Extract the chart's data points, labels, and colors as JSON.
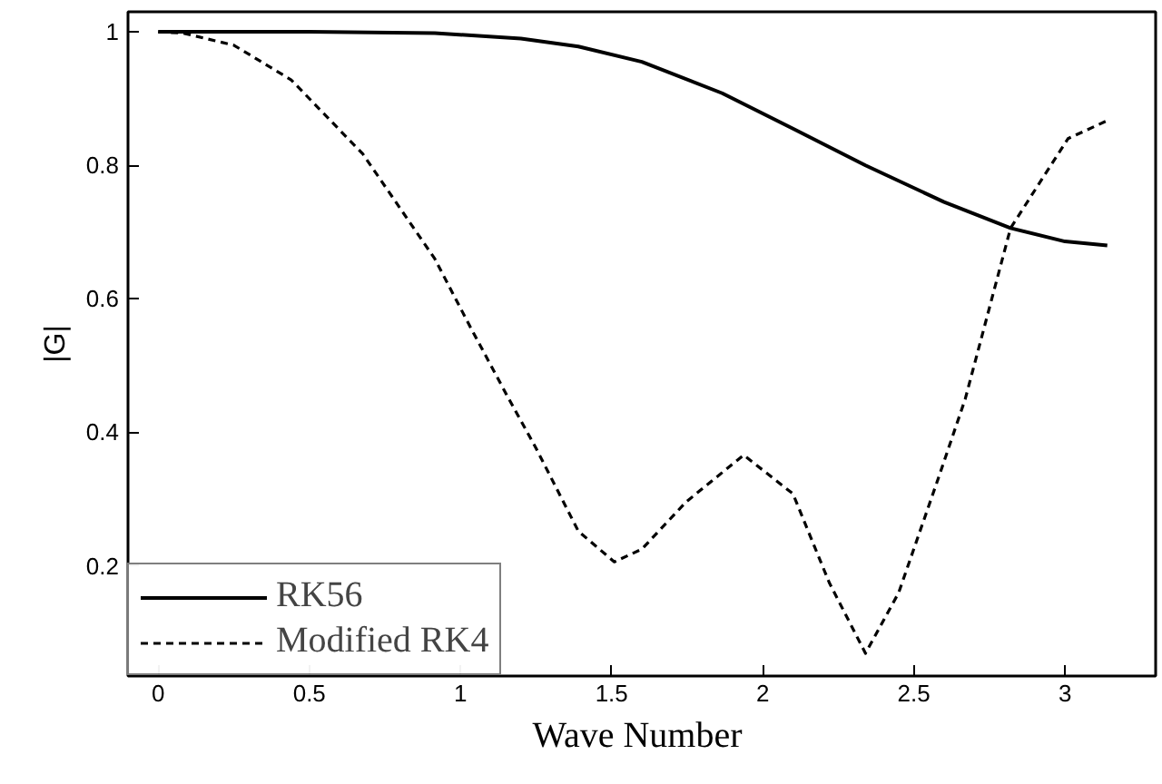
{
  "chart_data": {
    "type": "line",
    "xlabel": "Wave  Number",
    "ylabel": "|G|",
    "xlim": [
      -0.1,
      3.3
    ],
    "ylim": [
      0.035,
      1.03
    ],
    "xticks": [
      0,
      0.5,
      1,
      1.5,
      2,
      2.5,
      3
    ],
    "yticks": [
      0.2,
      0.4,
      0.6,
      0.8,
      1
    ],
    "grid": false,
    "legend": "bottom left",
    "marker": "none",
    "series": [
      {
        "name": "RK56",
        "color": "#000000",
        "line_style": "solid",
        "x": [
          0,
          0.5,
          0.915,
          1.2,
          1.39,
          1.6,
          1.866,
          2.1,
          2.34,
          2.6,
          2.82,
          3.0,
          3.14
        ],
        "values": [
          1,
          1,
          0.998,
          0.99,
          0.978,
          0.955,
          0.908,
          0.855,
          0.8,
          0.745,
          0.706,
          0.686,
          0.68
        ]
      },
      {
        "name": "Modified RK4",
        "color": "#000000",
        "line_style": "dashed",
        "x": [
          0,
          0.083,
          0.25,
          0.44,
          0.677,
          0.915,
          1.03,
          1.153,
          1.248,
          1.39,
          1.509,
          1.6,
          1.747,
          1.937,
          2.1,
          2.22,
          2.34,
          2.45,
          2.58,
          2.67,
          2.82,
          3.01,
          3.14
        ],
        "values": [
          1,
          0.998,
          0.98,
          0.928,
          0.817,
          0.66,
          0.56,
          0.456,
          0.378,
          0.252,
          0.206,
          0.225,
          0.296,
          0.366,
          0.308,
          0.175,
          0.069,
          0.16,
          0.33,
          0.45,
          0.706,
          0.84,
          0.867
        ]
      }
    ]
  }
}
